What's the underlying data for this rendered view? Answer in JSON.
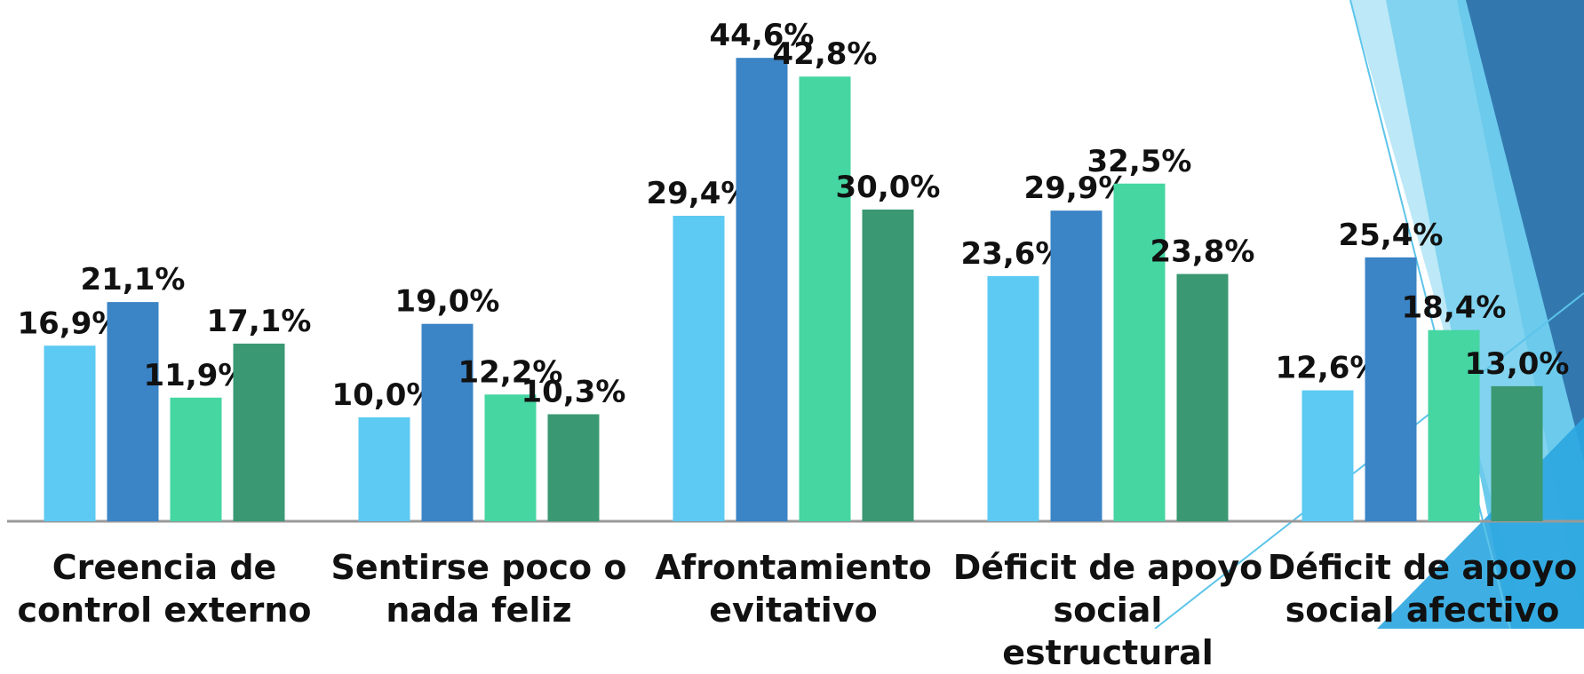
{
  "chart_data": {
    "type": "bar",
    "categories": [
      "Creencia de\ncontrol externo",
      "Sentirse poco o\nnada feliz",
      "Afrontamiento\nevitativo",
      "Déficit de apoyo\nsocial estructural",
      "Déficit de apoyo\nsocial afectivo"
    ],
    "series": [
      {
        "color": "#5ccaf2",
        "values": [
          16.9,
          10.0,
          29.4,
          23.6,
          12.6
        ],
        "value_labels": [
          "16,9%",
          "10,0%",
          "29,4%",
          "23,6%",
          "12,6%"
        ]
      },
      {
        "color": "#3b84c6",
        "values": [
          21.1,
          19.0,
          44.6,
          29.9,
          25.4
        ],
        "value_labels": [
          "21,1%",
          "19,0%",
          "44,6%",
          "29,9%",
          "25,4%"
        ]
      },
      {
        "color": "#45d6a2",
        "values": [
          11.9,
          12.2,
          42.8,
          32.5,
          18.4
        ],
        "value_labels": [
          "11,9%",
          "12,2%",
          "42,8%",
          "32,5%",
          "18,4%"
        ]
      },
      {
        "color": "#3a9872",
        "values": [
          17.1,
          10.3,
          30.0,
          23.8,
          13.0
        ],
        "value_labels": [
          "17,1%",
          "10,3%",
          "30,0%",
          "23,8%",
          "13,0%"
        ]
      }
    ],
    "ylim": [
      0,
      50
    ]
  }
}
